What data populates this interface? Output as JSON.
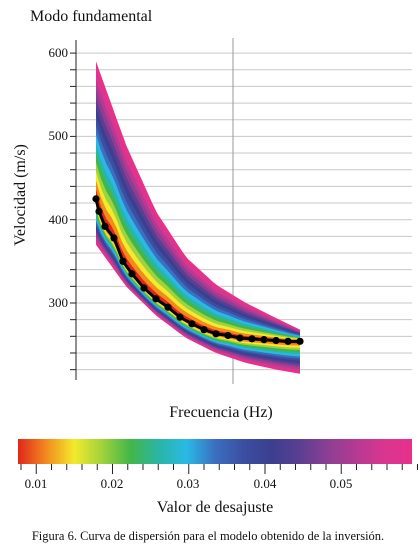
{
  "chart_data": {
    "type": "line",
    "title": "Modo fundamental",
    "xlabel": "Frecuencia (Hz)",
    "ylabel": "Velocidad (m/s)",
    "yticks": [
      "300",
      "400",
      "500",
      "600"
    ],
    "ylim": [
      200,
      620
    ],
    "grid": true,
    "series": [
      {
        "x": [
          1.0,
          1.05,
          1.15,
          1.3,
          1.45,
          1.6,
          1.8,
          2.0,
          2.2,
          2.4,
          2.6,
          2.8,
          3.0,
          3.2,
          3.4,
          3.6,
          3.8,
          4.0,
          4.2,
          4.4
        ],
        "values": [
          425,
          410,
          392,
          378,
          350,
          335,
          318,
          305,
          295,
          283,
          275,
          268,
          263,
          261,
          258,
          257,
          256,
          255,
          254,
          254
        ]
      }
    ],
    "band": {
      "x": [
        1.0,
        1.5,
        2.0,
        2.5,
        3.0,
        3.5,
        4.0,
        4.4
      ],
      "lower": [
        370,
        320,
        285,
        258,
        240,
        228,
        220,
        215
      ],
      "upper": [
        590,
        490,
        410,
        355,
        322,
        300,
        282,
        268
      ]
    }
  },
  "misfit_scale": {
    "label": "Valor de desajuste",
    "ticks": [
      "0.01",
      "0.02",
      "0.03",
      "0.04",
      "0.05"
    ],
    "colors": [
      "#e1261c",
      "#f28a1e",
      "#f4e92c",
      "#9fd23c",
      "#43b649",
      "#29b6a5",
      "#2ab9e6",
      "#3b6fc0",
      "#3b4fa2",
      "#3b3f8f",
      "#5a3f92",
      "#8b3f94",
      "#b43a92",
      "#d9368f",
      "#e8308c"
    ]
  },
  "caption": "Figura 6. Curva de dispersión para el modelo obtenido de la inversión."
}
